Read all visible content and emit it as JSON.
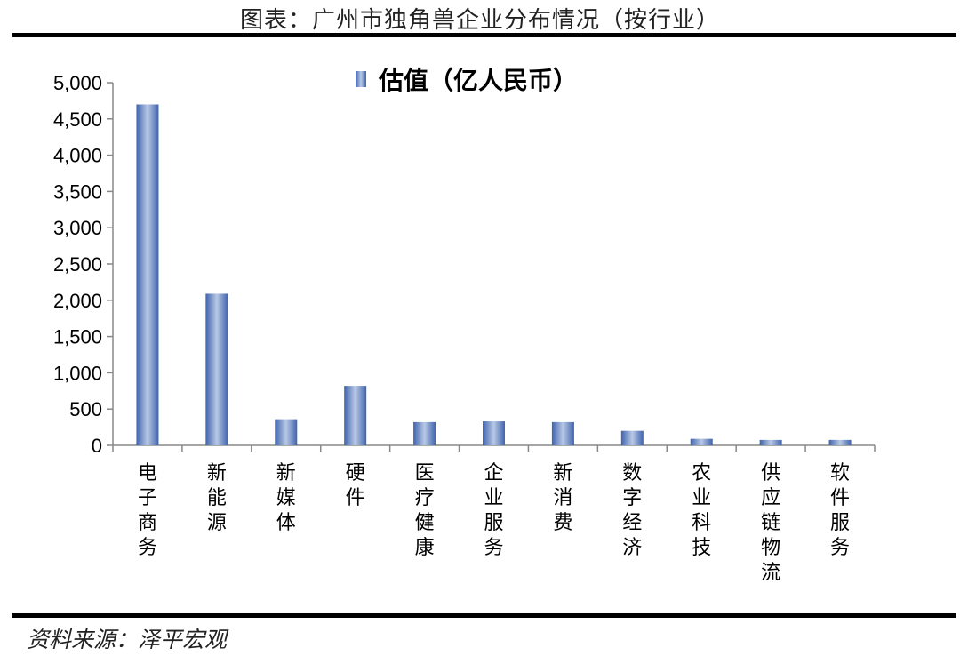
{
  "header": {
    "title": "图表：广州市独角兽企业分布情况（按行业）"
  },
  "footer": {
    "source": "资料来源：泽平宏观"
  },
  "chart_data": {
    "type": "bar",
    "categories": [
      "电子商务",
      "新能源",
      "新媒体",
      "硬件",
      "医疗健康",
      "企业服务",
      "新消费",
      "数字经济",
      "农业科技",
      "供应链物流",
      "软件服务"
    ],
    "series": [
      {
        "name": "估值（亿人民币）",
        "values": [
          4700,
          2090,
          360,
          820,
          320,
          330,
          320,
          200,
          90,
          75,
          75
        ]
      }
    ],
    "ylim": [
      0,
      5000
    ],
    "yticks": [
      0,
      500,
      1000,
      1500,
      2000,
      2500,
      3000,
      3500,
      4000,
      4500,
      5000
    ],
    "ytick_labels": [
      "0",
      "500",
      "1,000",
      "1,500",
      "2,000",
      "2,500",
      "3,000",
      "3,500",
      "4,000",
      "4,500",
      "5,000"
    ],
    "legend_position": "top-center",
    "grid": false,
    "bar_color": "#5b7fc0"
  }
}
